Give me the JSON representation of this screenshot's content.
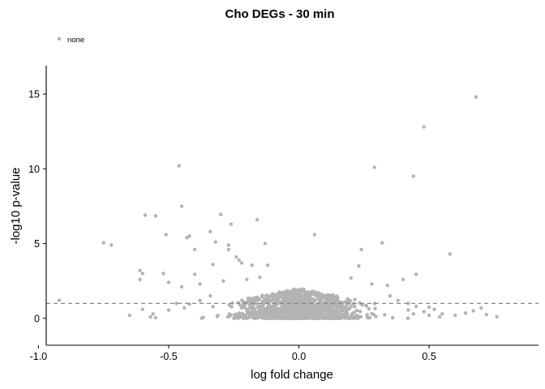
{
  "chart_data": {
    "type": "scatter",
    "title": "Cho DEGs - 30 min",
    "xlabel": "log fold change",
    "ylabel": "-log10 p-value",
    "xlim": [
      -0.97,
      0.92
    ],
    "ylim": [
      -1.8,
      16.9
    ],
    "x_ticks": [
      -1.0,
      -0.5,
      0.0,
      0.5
    ],
    "x_tick_labels": [
      "-1.0",
      "-0.5",
      "0.0",
      "0.5"
    ],
    "y_ticks": [
      0,
      5,
      10,
      15
    ],
    "y_tick_labels": [
      "0",
      "5",
      "10",
      "15"
    ],
    "threshold_line": {
      "y": 1.0,
      "style": "dashed",
      "color": "#888888"
    },
    "grid": false,
    "legend": {
      "position": "top-left",
      "entries": [
        "none"
      ]
    },
    "series": [
      {
        "name": "none",
        "color": "#b3b3b3",
        "points": [
          [
            0.68,
            14.8
          ],
          [
            0.48,
            12.8
          ],
          [
            -0.46,
            10.2
          ],
          [
            0.29,
            10.1
          ],
          [
            0.44,
            9.5
          ],
          [
            -0.45,
            7.5
          ],
          [
            -0.59,
            6.9
          ],
          [
            -0.55,
            6.85
          ],
          [
            -0.3,
            6.95
          ],
          [
            -0.16,
            6.6
          ],
          [
            -0.26,
            6.3
          ],
          [
            -0.34,
            5.8
          ],
          [
            -0.42,
            5.5
          ],
          [
            -0.43,
            5.4
          ],
          [
            0.06,
            5.6
          ],
          [
            -0.51,
            5.6
          ],
          [
            -0.75,
            5.05
          ],
          [
            -0.72,
            4.9
          ],
          [
            -0.32,
            5.1
          ],
          [
            0.32,
            5.05
          ],
          [
            -0.27,
            4.9
          ],
          [
            -0.13,
            5.0
          ],
          [
            -0.4,
            4.6
          ],
          [
            -0.27,
            4.6
          ],
          [
            0.24,
            4.6
          ],
          [
            0.58,
            4.3
          ],
          [
            -0.24,
            4.1
          ],
          [
            -0.23,
            3.9
          ],
          [
            -0.22,
            3.7
          ],
          [
            -0.33,
            3.6
          ],
          [
            -0.18,
            3.55
          ],
          [
            -0.12,
            3.55
          ],
          [
            0.23,
            3.5
          ],
          [
            -0.61,
            3.2
          ],
          [
            -0.6,
            3.0
          ],
          [
            -0.52,
            3.0
          ],
          [
            -0.4,
            2.95
          ],
          [
            0.45,
            2.95
          ],
          [
            -0.61,
            2.6
          ],
          [
            -0.29,
            2.5
          ],
          [
            -0.5,
            2.4
          ],
          [
            -0.45,
            2.1
          ],
          [
            -0.38,
            2.3
          ],
          [
            -0.2,
            2.6
          ],
          [
            -0.15,
            2.75
          ],
          [
            0.2,
            2.7
          ],
          [
            0.34,
            2.2
          ],
          [
            0.4,
            2.6
          ],
          [
            0.28,
            2.3
          ],
          [
            -0.92,
            1.2
          ],
          [
            -0.6,
            0.6
          ],
          [
            -0.56,
            0.3
          ],
          [
            -0.55,
            0.05
          ],
          [
            -0.57,
            0.1
          ],
          [
            -0.5,
            0.55
          ],
          [
            -0.44,
            0.7
          ],
          [
            -0.42,
            0.95
          ],
          [
            -0.47,
            1.0
          ],
          [
            -0.38,
            1.2
          ],
          [
            -0.34,
            1.5
          ],
          [
            0.45,
            0.8
          ],
          [
            0.5,
            0.75
          ],
          [
            0.52,
            0.6
          ],
          [
            0.55,
            0.3
          ],
          [
            0.54,
            0.1
          ],
          [
            0.6,
            0.2
          ],
          [
            0.64,
            0.35
          ],
          [
            0.67,
            0.5
          ],
          [
            0.7,
            0.7
          ],
          [
            0.72,
            0.25
          ],
          [
            0.76,
            0.1
          ],
          [
            0.48,
            0.45
          ],
          [
            0.5,
            0.2
          ],
          [
            0.42,
            0.55
          ],
          [
            0.44,
            0.3
          ],
          [
            0.35,
            1.5
          ],
          [
            0.38,
            1.2
          ],
          [
            0.42,
            1.0
          ],
          [
            -0.65,
            0.2
          ]
        ],
        "dense_cloud": {
          "note": "approximate distribution of dense background points",
          "x_sd": 0.11,
          "y_max": 2.0
        }
      }
    ]
  }
}
